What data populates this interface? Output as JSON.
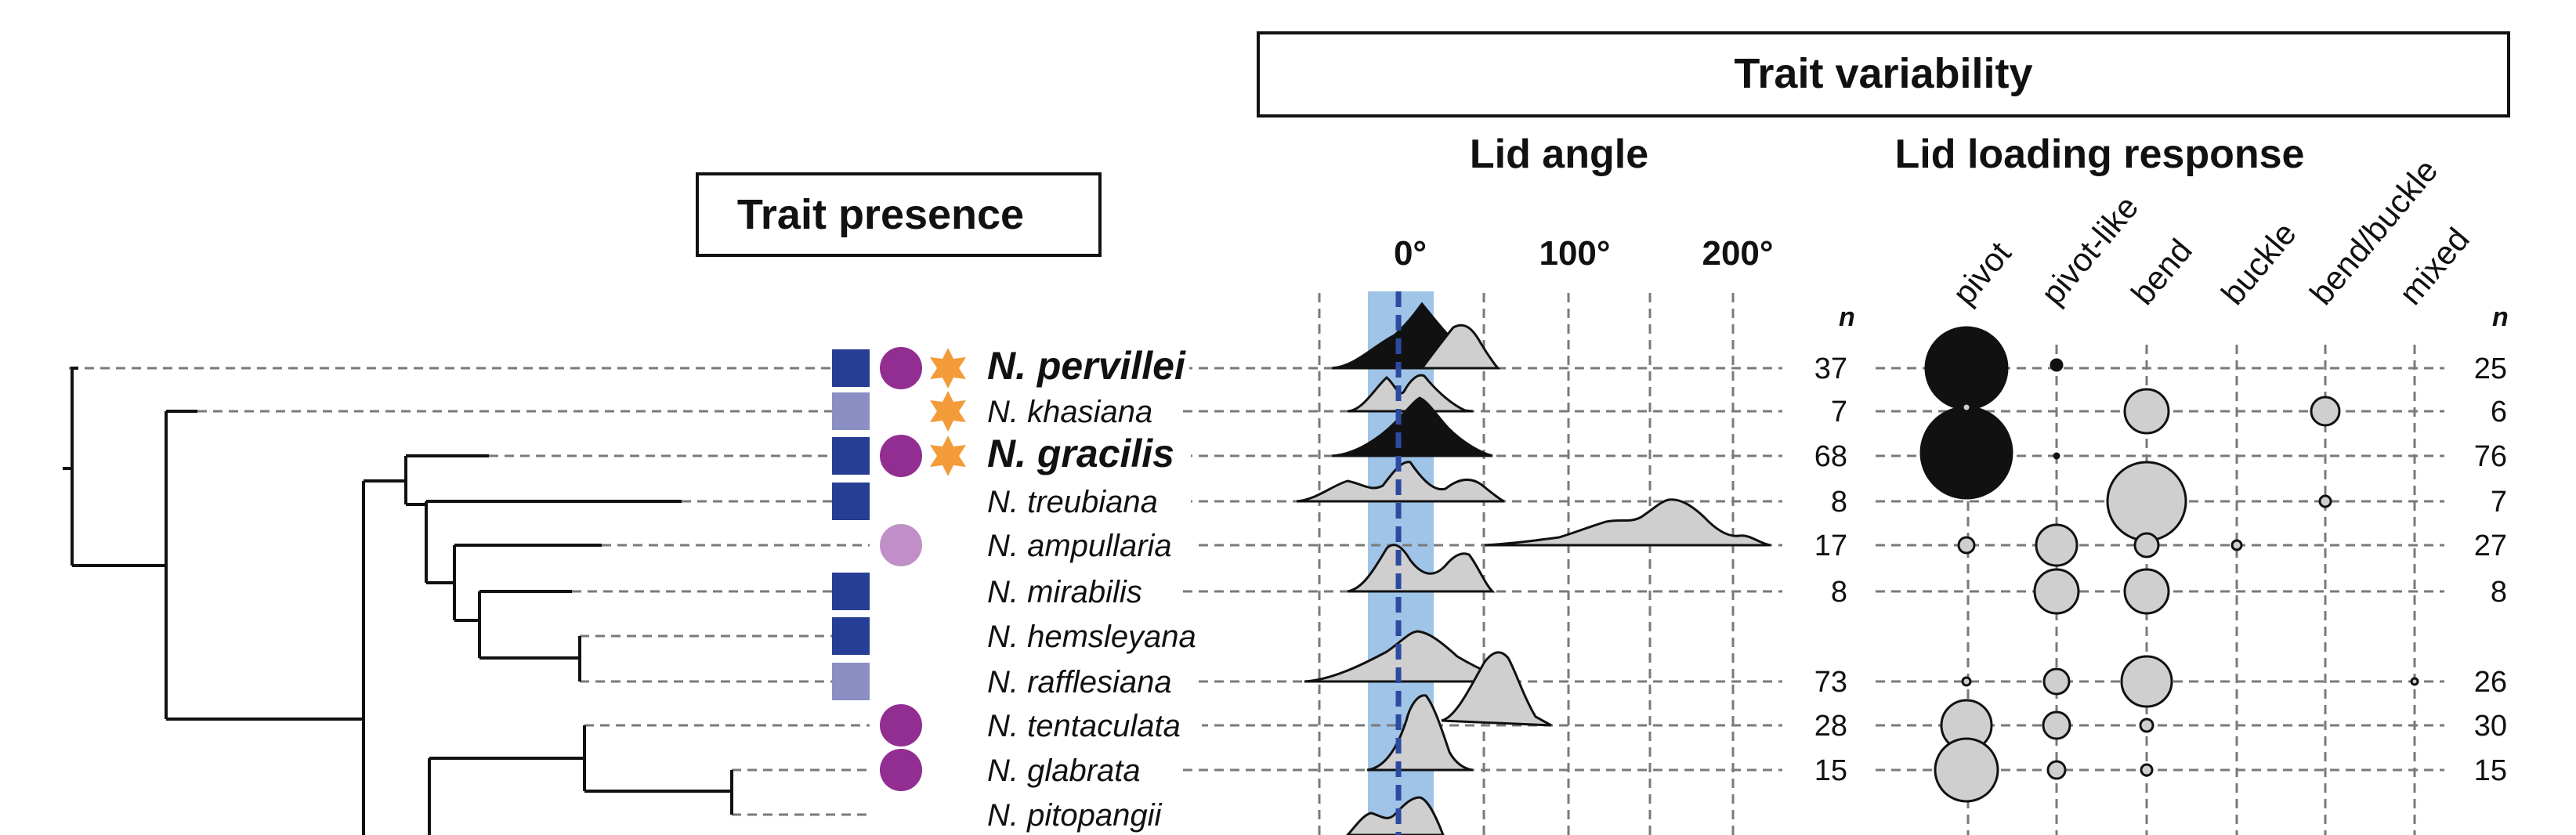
{
  "headers": {
    "trait_presence": "Trait presence",
    "trait_variability": "Trait variability",
    "lid_angle": "Lid angle",
    "lid_loading": "Lid loading response",
    "n": "n"
  },
  "angle_ticks": [
    "0°",
    "100°",
    "200°"
  ],
  "categories": [
    "pivot",
    "pivot-like",
    "bend",
    "buckle",
    "bend/buckle",
    "mixed"
  ],
  "colors": {
    "dark_blue": "#263f94",
    "light_blue": "#8b8fc4",
    "purple": "#922d91",
    "light_purple": "#c18fc8",
    "star": "#f29b38",
    "band": "#9fc4e8",
    "zero_line": "#2b4aa0",
    "fill_grey": "#cfcfcf",
    "fill_black": "#111111"
  },
  "species": [
    {
      "name": "N. pervillei",
      "bold": true,
      "square": "dark",
      "circle": "purple",
      "star": true,
      "n_angle": "37",
      "n_load": "25"
    },
    {
      "name": "N. khasiana",
      "bold": false,
      "square": "light",
      "circle": null,
      "star": true,
      "n_angle": "7",
      "n_load": "6"
    },
    {
      "name": "N. gracilis",
      "bold": true,
      "square": "dark",
      "circle": "purple",
      "star": true,
      "n_angle": "68",
      "n_load": "76"
    },
    {
      "name": "N. treubiana",
      "bold": false,
      "square": "dark",
      "circle": null,
      "star": false,
      "n_angle": "8",
      "n_load": "7"
    },
    {
      "name": "N. ampullaria",
      "bold": false,
      "square": null,
      "circle": "light",
      "star": false,
      "n_angle": "17",
      "n_load": "27"
    },
    {
      "name": "N. mirabilis",
      "bold": false,
      "square": "dark",
      "circle": null,
      "star": false,
      "n_angle": "8",
      "n_load": "8"
    },
    {
      "name": "N. hemsleyana",
      "bold": false,
      "square": "dark",
      "circle": null,
      "star": false,
      "n_angle": "",
      "n_load": ""
    },
    {
      "name": "N. rafflesiana",
      "bold": false,
      "square": "light",
      "circle": null,
      "star": false,
      "n_angle": "73",
      "n_load": "26"
    },
    {
      "name": "N. tentaculata",
      "bold": false,
      "square": null,
      "circle": "purple",
      "star": false,
      "n_angle": "28",
      "n_load": "30"
    },
    {
      "name": "N. glabrata",
      "bold": false,
      "square": null,
      "circle": "purple",
      "star": false,
      "n_angle": "15",
      "n_load": "15"
    },
    {
      "name": "N. pitopangii",
      "bold": false,
      "square": null,
      "circle": null,
      "star": false,
      "n_angle": "",
      "n_load": ""
    }
  ],
  "lid_loading_proportions": [
    {
      "species": "N. pervillei",
      "pivot": 0.8,
      "pivot-like": 0.04
    },
    {
      "species": "N. khasiana",
      "bend": 0.5,
      "bend/buckle": 0.33
    },
    {
      "species": "N. gracilis",
      "pivot": 0.97,
      "pivot-like": 0.01
    },
    {
      "species": "N. treubiana",
      "bend": 0.86,
      "bend/buckle": 0.03
    },
    {
      "species": "N. ampullaria",
      "pivot": 0.07,
      "pivot-like": 0.48,
      "bend": 0.15,
      "buckle": 0.02
    },
    {
      "species": "N. mirabilis",
      "pivot-like": 0.5,
      "bend": 0.5
    },
    {
      "species": "N. rafflesiana",
      "pivot": 0.02,
      "pivot-like": 0.18,
      "bend": 0.62,
      "mixed": 0.01
    },
    {
      "species": "N. tentaculata",
      "pivot": 0.7,
      "pivot-like": 0.2,
      "bend": 0.05
    },
    {
      "species": "N. glabrata",
      "pivot": 0.9,
      "pivot-like": 0.07,
      "bend": 0.03
    }
  ]
}
